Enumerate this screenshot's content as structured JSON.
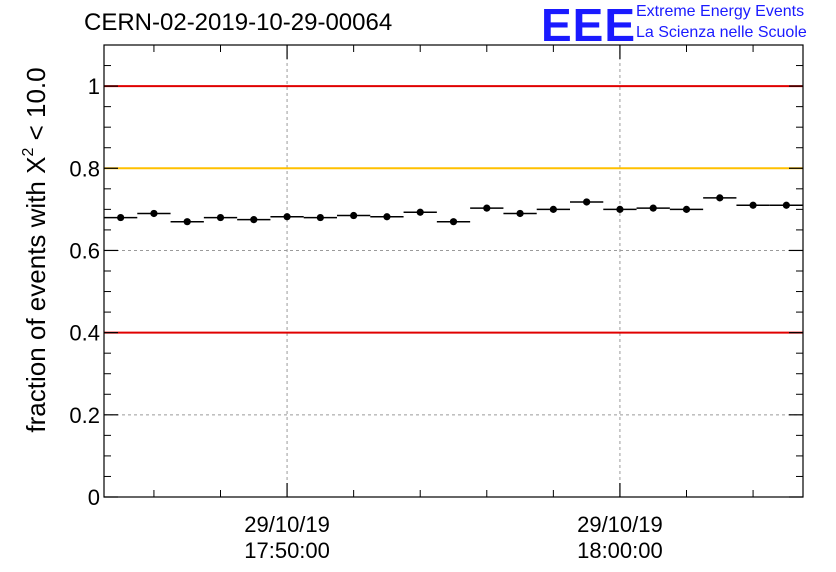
{
  "title": "CERN-02-2019-10-29-00064",
  "logo": {
    "mark": "EEE",
    "line1": "Extreme Energy Events",
    "line2": "La Scienza nelle Scuole"
  },
  "chart_data": {
    "type": "scatter",
    "ylabel_prefix": "fraction of events with X",
    "ylabel_sup": "2",
    "ylabel_suffix": " < 10.0",
    "ylim": [
      0,
      1.1
    ],
    "yticks": [
      0,
      0.2,
      0.4,
      0.6,
      0.8,
      1
    ],
    "ytick_labels": [
      "0",
      "0.2",
      "0.4",
      "0.6",
      "0.8",
      "1"
    ],
    "xlim_minutes": [
      -5.5,
      15.5
    ],
    "xtick_labels": [
      {
        "value_min": 0,
        "date": "29/10/19",
        "time": "17:50:00"
      },
      {
        "value_min": 10,
        "date": "29/10/19",
        "time": "18:00:00"
      }
    ],
    "minor_ticks_min": [
      -4,
      -2,
      2,
      4,
      6,
      8,
      12,
      14
    ],
    "grid": true,
    "hlines": [
      {
        "y": 1.0,
        "color": "#e00000"
      },
      {
        "y": 0.8,
        "color": "#ffc000"
      },
      {
        "y": 0.4,
        "color": "#e00000"
      }
    ],
    "bin_width_min": 1,
    "x_min": [
      -5,
      -4,
      -3,
      -2,
      -1,
      0,
      1,
      2,
      3,
      4,
      5,
      6,
      7,
      8,
      9,
      10,
      11,
      12,
      13,
      14,
      15
    ],
    "y": [
      0.68,
      0.69,
      0.67,
      0.68,
      0.675,
      0.682,
      0.68,
      0.685,
      0.682,
      0.693,
      0.67,
      0.703,
      0.69,
      0.7,
      0.718,
      0.7,
      0.703,
      0.7,
      0.728,
      0.71,
      0.71
    ]
  }
}
